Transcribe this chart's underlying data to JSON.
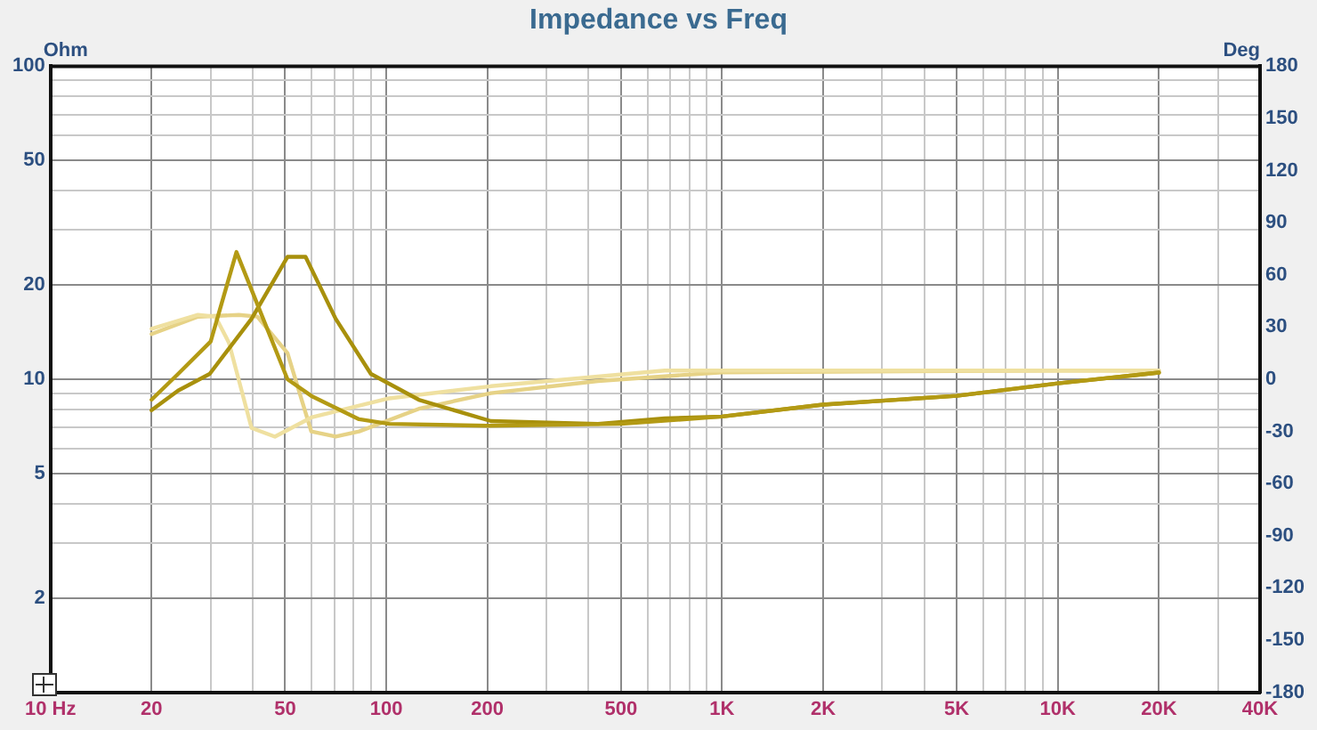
{
  "chart_data": {
    "type": "line",
    "title": "Impedance vs Freq",
    "ylabel": "Ohm",
    "y2label": "Deg",
    "log": "xy",
    "grid": true,
    "legend": false,
    "marker": "none",
    "line_style": "solid",
    "xlim": [
      10,
      40000
    ],
    "xticks": [
      {
        "value": 10,
        "label": "10 Hz"
      },
      20,
      {
        "value": 30,
        "label": null
      },
      {
        "value": 40,
        "label": null
      },
      50,
      {
        "value": 60,
        "label": null
      },
      {
        "value": 70,
        "label": null
      },
      {
        "value": 80,
        "label": null
      },
      {
        "value": 90,
        "label": null
      },
      100,
      200,
      {
        "value": 300,
        "label": null
      },
      {
        "value": 400,
        "label": null
      },
      500,
      {
        "value": 600,
        "label": null
      },
      {
        "value": 700,
        "label": null
      },
      {
        "value": 800,
        "label": null
      },
      {
        "value": 900,
        "label": null
      },
      {
        "value": 1000,
        "label": "1K"
      },
      {
        "value": 2000,
        "label": "2K"
      },
      {
        "value": 3000,
        "label": null
      },
      {
        "value": 4000,
        "label": null
      },
      {
        "value": 5000,
        "label": "5K"
      },
      {
        "value": 6000,
        "label": null
      },
      {
        "value": 7000,
        "label": null
      },
      {
        "value": 8000,
        "label": null
      },
      {
        "value": 9000,
        "label": null
      },
      {
        "value": 10000,
        "label": "10K"
      },
      {
        "value": 20000,
        "label": "20K"
      },
      {
        "value": 30000,
        "label": null
      },
      {
        "value": 40000,
        "label": "40K"
      }
    ],
    "ylim": [
      1,
      100
    ],
    "yticks": [
      {
        "value": 1,
        "label": null
      },
      2,
      {
        "value": 3,
        "label": null
      },
      {
        "value": 4,
        "label": null
      },
      5,
      {
        "value": 6,
        "label": null
      },
      {
        "value": 7,
        "label": null
      },
      {
        "value": 8,
        "label": null
      },
      {
        "value": 9,
        "label": null
      },
      10,
      20,
      {
        "value": 30,
        "label": null
      },
      {
        "value": 40,
        "label": null
      },
      50,
      {
        "value": 60,
        "label": null
      },
      {
        "value": 70,
        "label": null
      },
      {
        "value": 80,
        "label": null
      },
      {
        "value": 90,
        "label": null
      },
      100
    ],
    "y2lim": [
      -180,
      180
    ],
    "y2ticks": [
      -180,
      -150,
      -120,
      -90,
      -60,
      -30,
      0,
      30,
      60,
      90,
      120,
      150,
      180
    ],
    "series": [
      {
        "color": "#b39a14",
        "x": [
          20,
          24,
          30,
          35.8,
          43,
          50.8,
          59.8,
          83,
          102,
          200,
          500,
          1000,
          2000,
          5000,
          10000,
          20000
        ],
        "values": [
          8.6,
          10.4,
          13.2,
          25.5,
          15.6,
          10,
          8.85,
          7.45,
          7.2,
          7.1,
          7.2,
          7.6,
          8.3,
          8.85,
          9.7,
          10.5
        ]
      },
      {
        "color": "#a8900c",
        "x": [
          20,
          24,
          29.8,
          39.7,
          50.8,
          57.5,
          70.7,
          90,
          125,
          205,
          427,
          675,
          1000,
          2000,
          5000,
          10000,
          20000
        ],
        "values": [
          7.96,
          9.2,
          10.4,
          15.6,
          24.6,
          24.6,
          15.6,
          10.4,
          8.6,
          7.35,
          7.2,
          7.5,
          7.6,
          8.3,
          8.85,
          9.7,
          10.5
        ]
      },
      {
        "axis": "y2",
        "color": "#efe0a0",
        "x": [
          20,
          27.5,
          31,
          34,
          39.7,
          46.6,
          59.8,
          102,
          205,
          675,
          10000,
          20000
        ],
        "values": [
          29,
          37,
          36,
          21,
          -28,
          -33,
          -22,
          -11,
          -4,
          5,
          5,
          5
        ]
      },
      {
        "axis": "y2",
        "color": "#e6d286",
        "x": [
          20,
          27.5,
          36.4,
          41.3,
          50.8,
          59.8,
          70.7,
          83,
          125,
          205,
          427,
          1000,
          10000,
          20000
        ],
        "values": [
          26,
          36,
          37,
          36,
          15,
          -30,
          -33,
          -30,
          -17,
          -8,
          -1,
          4,
          5,
          5
        ]
      }
    ]
  }
}
